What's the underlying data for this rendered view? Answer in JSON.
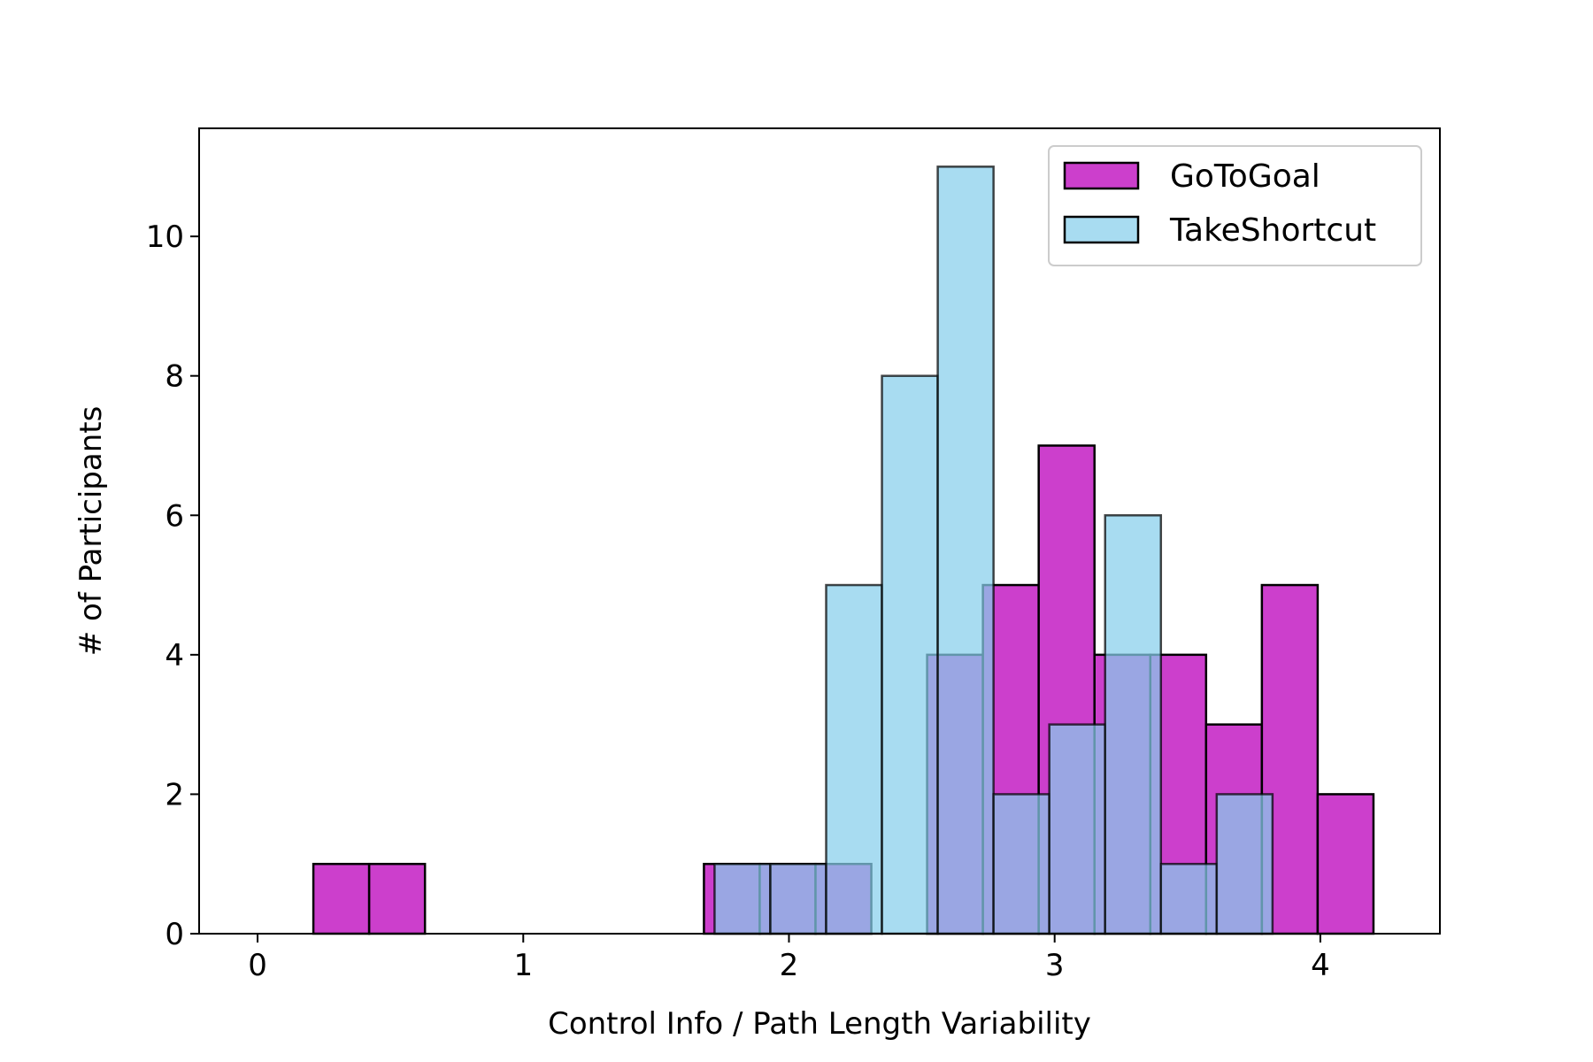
{
  "chart_data": {
    "type": "bar",
    "subtype": "overlapping-histogram",
    "title": "",
    "xlabel": "Control Info / Path Length Variability",
    "ylabel": "# of Participants",
    "xlim": [
      -0.22,
      4.45
    ],
    "ylim": [
      0,
      11.55
    ],
    "xticks": [
      0,
      1,
      2,
      3,
      4
    ],
    "yticks": [
      0,
      2,
      4,
      6,
      8,
      10
    ],
    "grid": false,
    "legend_position": "top-right",
    "series": [
      {
        "name": "GoToGoal",
        "color": "#cc3fcc",
        "alpha": 1.0,
        "bins": [
          {
            "x0": 0.0,
            "x1": 0.21,
            "count": 0
          },
          {
            "x0": 0.21,
            "x1": 0.42,
            "count": 1
          },
          {
            "x0": 0.42,
            "x1": 0.63,
            "count": 1
          },
          {
            "x0": 0.63,
            "x1": 0.84,
            "count": 0
          },
          {
            "x0": 0.84,
            "x1": 1.05,
            "count": 0
          },
          {
            "x0": 1.05,
            "x1": 1.26,
            "count": 0
          },
          {
            "x0": 1.26,
            "x1": 1.47,
            "count": 0
          },
          {
            "x0": 1.47,
            "x1": 1.68,
            "count": 0
          },
          {
            "x0": 1.68,
            "x1": 1.89,
            "count": 1
          },
          {
            "x0": 1.89,
            "x1": 2.1,
            "count": 1
          },
          {
            "x0": 2.1,
            "x1": 2.31,
            "count": 1
          },
          {
            "x0": 2.31,
            "x1": 2.52,
            "count": 0
          },
          {
            "x0": 2.52,
            "x1": 2.73,
            "count": 4
          },
          {
            "x0": 2.73,
            "x1": 2.94,
            "count": 5
          },
          {
            "x0": 2.94,
            "x1": 3.15,
            "count": 7
          },
          {
            "x0": 3.15,
            "x1": 3.36,
            "count": 4
          },
          {
            "x0": 3.36,
            "x1": 3.57,
            "count": 4
          },
          {
            "x0": 3.57,
            "x1": 3.78,
            "count": 3
          },
          {
            "x0": 3.78,
            "x1": 3.99,
            "count": 5
          },
          {
            "x0": 3.99,
            "x1": 4.2,
            "count": 2
          }
        ]
      },
      {
        "name": "TakeShortcut",
        "color": "#87ceeb",
        "alpha": 0.72,
        "bins": [
          {
            "x0": 1.72,
            "x1": 1.93,
            "count": 1
          },
          {
            "x0": 1.93,
            "x1": 2.14,
            "count": 1
          },
          {
            "x0": 2.14,
            "x1": 2.35,
            "count": 5
          },
          {
            "x0": 2.35,
            "x1": 2.56,
            "count": 8
          },
          {
            "x0": 2.56,
            "x1": 2.77,
            "count": 11
          },
          {
            "x0": 2.77,
            "x1": 2.98,
            "count": 2
          },
          {
            "x0": 2.98,
            "x1": 3.19,
            "count": 3
          },
          {
            "x0": 3.19,
            "x1": 3.4,
            "count": 6
          },
          {
            "x0": 3.4,
            "x1": 3.61,
            "count": 1
          },
          {
            "x0": 3.61,
            "x1": 3.82,
            "count": 2
          }
        ]
      }
    ]
  }
}
